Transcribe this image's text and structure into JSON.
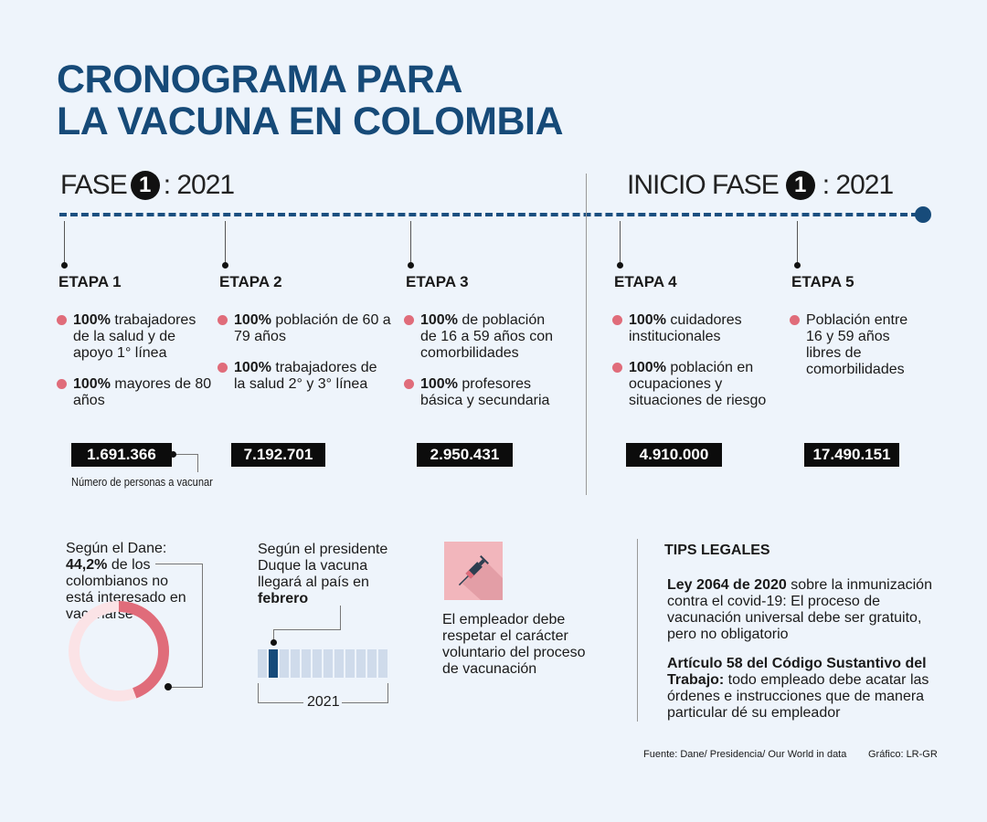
{
  "title": {
    "line1": "CRONOGRAMA PARA",
    "line2": "LA VACUNA EN COLOMBIA"
  },
  "colors": {
    "title": "#164a78",
    "accent": "#e06c7a",
    "timeline": "#1b4f80",
    "background": "#eef4fb"
  },
  "phases": [
    {
      "prefix": "FASE",
      "number": "1",
      "suffix": ": 2021"
    },
    {
      "prefix": "INICIO FASE",
      "number": "1",
      "suffix": ": 2021"
    }
  ],
  "stages": [
    {
      "title": "ETAPA 1",
      "bullets": [
        {
          "bold": "100%",
          "text": " trabajadores de la salud y de apoyo 1° línea"
        },
        {
          "bold": "100%",
          "text": " mayores de 80 años"
        }
      ],
      "count": "1.691.366"
    },
    {
      "title": "ETAPA 2",
      "bullets": [
        {
          "bold": "100%",
          "text": " población de 60 a 79 años"
        },
        {
          "bold": "100%",
          "text": " trabajadores de la salud 2° y 3° línea"
        }
      ],
      "count": "7.192.701"
    },
    {
      "title": "ETAPA 3",
      "bullets": [
        {
          "bold": "100%",
          "text": " de población de 16 a 59 años con comorbilidades"
        },
        {
          "bold": "100%",
          "text": " profesores básica y secundaria"
        }
      ],
      "count": "2.950.431"
    },
    {
      "title": "ETAPA 4",
      "bullets": [
        {
          "bold": "100%",
          "text": " cuidadores institucionales"
        },
        {
          "bold": "100%",
          "text": " población en ocupaciones y situaciones de riesgo"
        }
      ],
      "count": "4.910.000"
    },
    {
      "title": "ETAPA 5",
      "bullets": [
        {
          "bold": "",
          "text": "Población entre 16 y 59 años libres de comorbilidades"
        }
      ],
      "count": "17.490.151"
    }
  ],
  "count_annotation": "Número de personas a vacunar",
  "dane": {
    "intro": "Según el Dane:",
    "bold": "44,2%",
    "text": " de los colombianos no está interesado en vacunarse",
    "percent": 44.2
  },
  "duque": {
    "text": "Según el presidente Duque la vacuna llegará al país en ",
    "bold": "febrero",
    "year": "2021",
    "months": 12,
    "highlight_month": 2
  },
  "employer": {
    "icon": "syringe-icon",
    "text": "El empleador debe respetar el carácter voluntario del proceso de vacunación"
  },
  "tips": {
    "title": "TIPS LEGALES",
    "items": [
      {
        "bold": "Ley 2064 de 2020",
        "text": " sobre la inmunización contra el covid-19: El proceso de vacunación universal debe ser gratuito, pero no obligatorio"
      },
      {
        "bold": "Artículo 58 del Código Sustantivo del Trabajo:",
        "text": " todo empleado debe acatar las órdenes e instrucciones que de manera particular dé su empleador"
      }
    ]
  },
  "footer": {
    "source": "Fuente: Dane/ Presidencia/ Our World in data",
    "credit": "Gráfico: LR-GR"
  }
}
